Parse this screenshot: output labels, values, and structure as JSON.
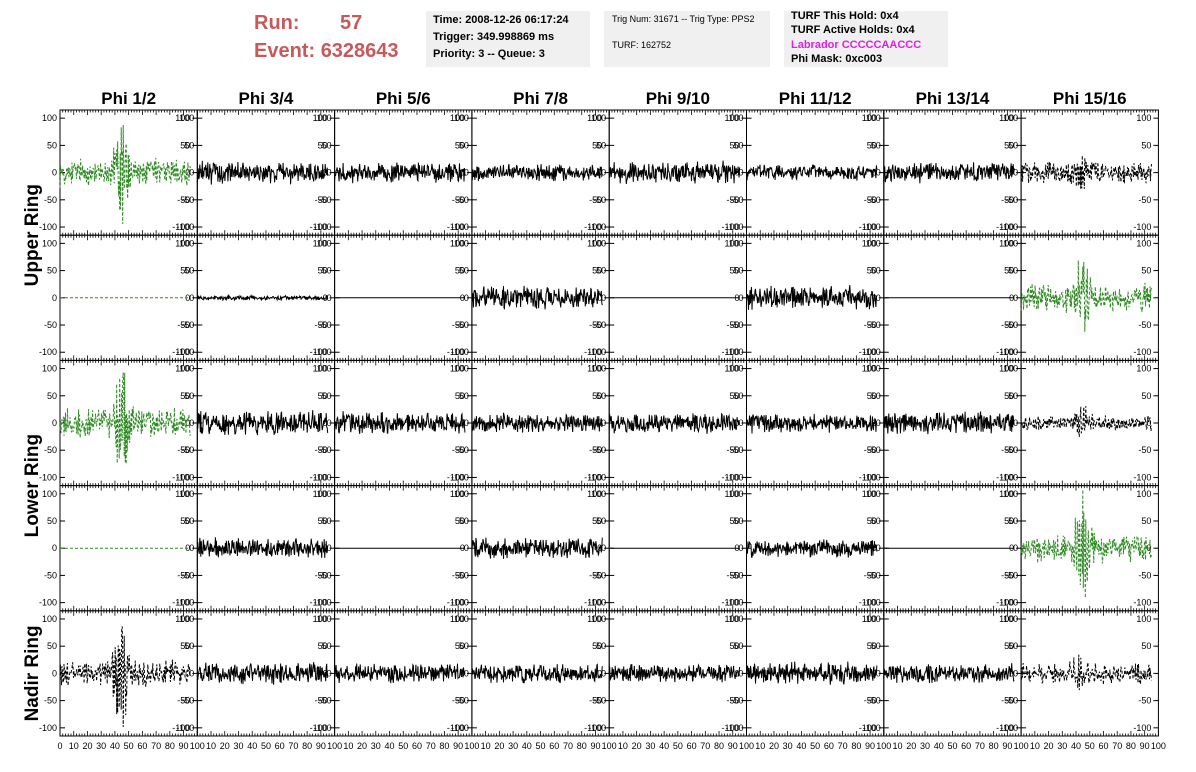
{
  "header": {
    "run_label": "Run:",
    "run_value": "57",
    "event_label": "Event:",
    "event_value": "6328643",
    "time": "Time: 2008-12-26 06:17:24",
    "trigger": "Trigger: 349.998869 ms",
    "priority": "Priority: 3 -- Queue: 3",
    "trig_info": "Trig Num: 31671 -- Trig Type: PPS2",
    "turf": "TURF: 162752",
    "turf_hold": "TURF This Hold: 0x4",
    "turf_active": "TURF Active Holds: 0x4",
    "labrador": "Labrador CCCCCAACCC",
    "phi_mask": "Phi Mask: 0xc003",
    "run_color": "#c8595a",
    "labrador_color": "#e020e0"
  },
  "chart_data": {
    "type": "line",
    "columns": [
      "Phi 1/2",
      "Phi 3/4",
      "Phi 5/6",
      "Phi 7/8",
      "Phi 9/10",
      "Phi 11/12",
      "Phi 13/14",
      "Phi 15/16"
    ],
    "ring_labels": [
      {
        "label": "Upper Ring",
        "rows": [
          0,
          1
        ]
      },
      {
        "label": "Lower Ring",
        "rows": [
          2,
          3
        ]
      },
      {
        "label": "Nadir Ring",
        "rows": [
          4
        ]
      }
    ],
    "xlim": [
      0,
      100
    ],
    "ylim": [
      -115,
      115
    ],
    "x_ticks": [
      0,
      10,
      20,
      30,
      40,
      50,
      60,
      70,
      80,
      90,
      100
    ],
    "x_tick_labels": [
      "0",
      "10",
      "20",
      "30",
      "40",
      "50",
      "60",
      "70",
      "80",
      "90",
      "100"
    ],
    "y_ticks": [
      -100,
      -50,
      0,
      50,
      100
    ],
    "y_tick_labels": [
      "-100",
      "-50",
      "0",
      "50",
      "100"
    ],
    "signal_window": [
      0,
      95
    ],
    "style_colors": {
      "normal": "#000000",
      "trigger": "#2e8b22",
      "dashed": "#000000"
    },
    "panels": [
      [
        {
          "amp": 18,
          "style": "trigger",
          "pulse": 75
        },
        {
          "amp": 14,
          "style": "normal",
          "pulse": 0
        },
        {
          "amp": 13,
          "style": "normal",
          "pulse": 0
        },
        {
          "amp": 11,
          "style": "normal",
          "pulse": 0
        },
        {
          "amp": 14,
          "style": "normal",
          "pulse": 0
        },
        {
          "amp": 10,
          "style": "normal",
          "pulse": 0
        },
        {
          "amp": 13,
          "style": "normal",
          "pulse": 0
        },
        {
          "amp": 14,
          "style": "dashed",
          "pulse": 20
        }
      ],
      [
        {
          "amp": 0,
          "style": "trigger",
          "pulse": 0
        },
        {
          "amp": 3,
          "style": "normal",
          "pulse": 0
        },
        {
          "amp": 0,
          "style": "normal",
          "pulse": 0
        },
        {
          "amp": 15,
          "style": "normal",
          "pulse": 0
        },
        {
          "amp": 0,
          "style": "normal",
          "pulse": 0
        },
        {
          "amp": 15,
          "style": "normal",
          "pulse": 0
        },
        {
          "amp": 0,
          "style": "normal",
          "pulse": 0
        },
        {
          "amp": 18,
          "style": "trigger",
          "pulse": 55
        }
      ],
      [
        {
          "amp": 18,
          "style": "trigger",
          "pulse": 80
        },
        {
          "amp": 15,
          "style": "normal",
          "pulse": 0
        },
        {
          "amp": 14,
          "style": "normal",
          "pulse": 0
        },
        {
          "amp": 12,
          "style": "normal",
          "pulse": 0
        },
        {
          "amp": 13,
          "style": "normal",
          "pulse": 0
        },
        {
          "amp": 13,
          "style": "normal",
          "pulse": 0
        },
        {
          "amp": 14,
          "style": "normal",
          "pulse": 0
        },
        {
          "amp": 10,
          "style": "dashed",
          "pulse": 20
        }
      ],
      [
        {
          "amp": 0,
          "style": "trigger",
          "pulse": 0
        },
        {
          "amp": 13,
          "style": "normal",
          "pulse": 0
        },
        {
          "amp": 0,
          "style": "normal",
          "pulse": 0
        },
        {
          "amp": 13,
          "style": "normal",
          "pulse": 0
        },
        {
          "amp": 0,
          "style": "normal",
          "pulse": 0
        },
        {
          "amp": 11,
          "style": "normal",
          "pulse": 0
        },
        {
          "amp": 0,
          "style": "normal",
          "pulse": 0
        },
        {
          "amp": 18,
          "style": "trigger",
          "pulse": 85
        }
      ],
      [
        {
          "amp": 16,
          "style": "dashed",
          "pulse": 85
        },
        {
          "amp": 14,
          "style": "normal",
          "pulse": 0
        },
        {
          "amp": 12,
          "style": "normal",
          "pulse": 0
        },
        {
          "amp": 12,
          "style": "normal",
          "pulse": 0
        },
        {
          "amp": 11,
          "style": "normal",
          "pulse": 0
        },
        {
          "amp": 14,
          "style": "normal",
          "pulse": 0
        },
        {
          "amp": 12,
          "style": "normal",
          "pulse": 0
        },
        {
          "amp": 14,
          "style": "dashed",
          "pulse": 30
        }
      ]
    ]
  }
}
